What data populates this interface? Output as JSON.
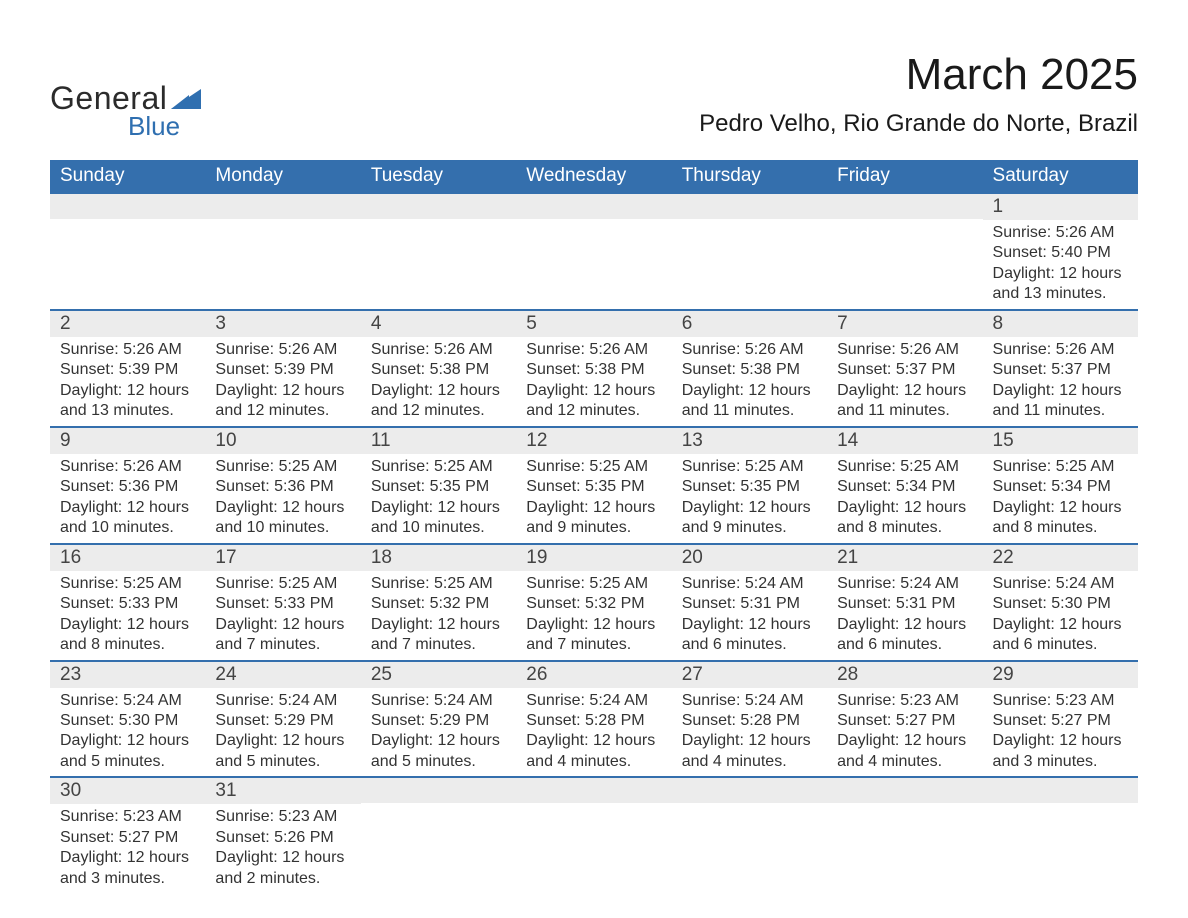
{
  "brand": {
    "word1": "General",
    "word2": "Blue",
    "word1_color": "#2b2b2b",
    "word2_color": "#2f6fb0",
    "triangle_color": "#2f6fb0"
  },
  "title": {
    "month_year": "March 2025",
    "location": "Pedro Velho, Rio Grande do Norte, Brazil",
    "title_fontsize": 44,
    "location_fontsize": 24
  },
  "colors": {
    "header_bg": "#346fad",
    "header_text": "#ffffff",
    "daynum_bg": "#ececec",
    "row_border": "#346fad",
    "body_text": "#333333",
    "page_bg": "#ffffff"
  },
  "weekdays": [
    "Sunday",
    "Monday",
    "Tuesday",
    "Wednesday",
    "Thursday",
    "Friday",
    "Saturday"
  ],
  "labels": {
    "sunrise": "Sunrise:",
    "sunset": "Sunset:",
    "daylight": "Daylight:"
  },
  "weeks": [
    [
      {
        "blank": true
      },
      {
        "blank": true
      },
      {
        "blank": true
      },
      {
        "blank": true
      },
      {
        "blank": true
      },
      {
        "blank": true
      },
      {
        "day": 1,
        "sunrise": "5:26 AM",
        "sunset": "5:40 PM",
        "daylight": "12 hours and 13 minutes."
      }
    ],
    [
      {
        "day": 2,
        "sunrise": "5:26 AM",
        "sunset": "5:39 PM",
        "daylight": "12 hours and 13 minutes."
      },
      {
        "day": 3,
        "sunrise": "5:26 AM",
        "sunset": "5:39 PM",
        "daylight": "12 hours and 12 minutes."
      },
      {
        "day": 4,
        "sunrise": "5:26 AM",
        "sunset": "5:38 PM",
        "daylight": "12 hours and 12 minutes."
      },
      {
        "day": 5,
        "sunrise": "5:26 AM",
        "sunset": "5:38 PM",
        "daylight": "12 hours and 12 minutes."
      },
      {
        "day": 6,
        "sunrise": "5:26 AM",
        "sunset": "5:38 PM",
        "daylight": "12 hours and 11 minutes."
      },
      {
        "day": 7,
        "sunrise": "5:26 AM",
        "sunset": "5:37 PM",
        "daylight": "12 hours and 11 minutes."
      },
      {
        "day": 8,
        "sunrise": "5:26 AM",
        "sunset": "5:37 PM",
        "daylight": "12 hours and 11 minutes."
      }
    ],
    [
      {
        "day": 9,
        "sunrise": "5:26 AM",
        "sunset": "5:36 PM",
        "daylight": "12 hours and 10 minutes."
      },
      {
        "day": 10,
        "sunrise": "5:25 AM",
        "sunset": "5:36 PM",
        "daylight": "12 hours and 10 minutes."
      },
      {
        "day": 11,
        "sunrise": "5:25 AM",
        "sunset": "5:35 PM",
        "daylight": "12 hours and 10 minutes."
      },
      {
        "day": 12,
        "sunrise": "5:25 AM",
        "sunset": "5:35 PM",
        "daylight": "12 hours and 9 minutes."
      },
      {
        "day": 13,
        "sunrise": "5:25 AM",
        "sunset": "5:35 PM",
        "daylight": "12 hours and 9 minutes."
      },
      {
        "day": 14,
        "sunrise": "5:25 AM",
        "sunset": "5:34 PM",
        "daylight": "12 hours and 8 minutes."
      },
      {
        "day": 15,
        "sunrise": "5:25 AM",
        "sunset": "5:34 PM",
        "daylight": "12 hours and 8 minutes."
      }
    ],
    [
      {
        "day": 16,
        "sunrise": "5:25 AM",
        "sunset": "5:33 PM",
        "daylight": "12 hours and 8 minutes."
      },
      {
        "day": 17,
        "sunrise": "5:25 AM",
        "sunset": "5:33 PM",
        "daylight": "12 hours and 7 minutes."
      },
      {
        "day": 18,
        "sunrise": "5:25 AM",
        "sunset": "5:32 PM",
        "daylight": "12 hours and 7 minutes."
      },
      {
        "day": 19,
        "sunrise": "5:25 AM",
        "sunset": "5:32 PM",
        "daylight": "12 hours and 7 minutes."
      },
      {
        "day": 20,
        "sunrise": "5:24 AM",
        "sunset": "5:31 PM",
        "daylight": "12 hours and 6 minutes."
      },
      {
        "day": 21,
        "sunrise": "5:24 AM",
        "sunset": "5:31 PM",
        "daylight": "12 hours and 6 minutes."
      },
      {
        "day": 22,
        "sunrise": "5:24 AM",
        "sunset": "5:30 PM",
        "daylight": "12 hours and 6 minutes."
      }
    ],
    [
      {
        "day": 23,
        "sunrise": "5:24 AM",
        "sunset": "5:30 PM",
        "daylight": "12 hours and 5 minutes."
      },
      {
        "day": 24,
        "sunrise": "5:24 AM",
        "sunset": "5:29 PM",
        "daylight": "12 hours and 5 minutes."
      },
      {
        "day": 25,
        "sunrise": "5:24 AM",
        "sunset": "5:29 PM",
        "daylight": "12 hours and 5 minutes."
      },
      {
        "day": 26,
        "sunrise": "5:24 AM",
        "sunset": "5:28 PM",
        "daylight": "12 hours and 4 minutes."
      },
      {
        "day": 27,
        "sunrise": "5:24 AM",
        "sunset": "5:28 PM",
        "daylight": "12 hours and 4 minutes."
      },
      {
        "day": 28,
        "sunrise": "5:23 AM",
        "sunset": "5:27 PM",
        "daylight": "12 hours and 4 minutes."
      },
      {
        "day": 29,
        "sunrise": "5:23 AM",
        "sunset": "5:27 PM",
        "daylight": "12 hours and 3 minutes."
      }
    ],
    [
      {
        "day": 30,
        "sunrise": "5:23 AM",
        "sunset": "5:27 PM",
        "daylight": "12 hours and 3 minutes."
      },
      {
        "day": 31,
        "sunrise": "5:23 AM",
        "sunset": "5:26 PM",
        "daylight": "12 hours and 2 minutes."
      },
      {
        "blank": true
      },
      {
        "blank": true
      },
      {
        "blank": true
      },
      {
        "blank": true
      },
      {
        "blank": true
      }
    ]
  ]
}
